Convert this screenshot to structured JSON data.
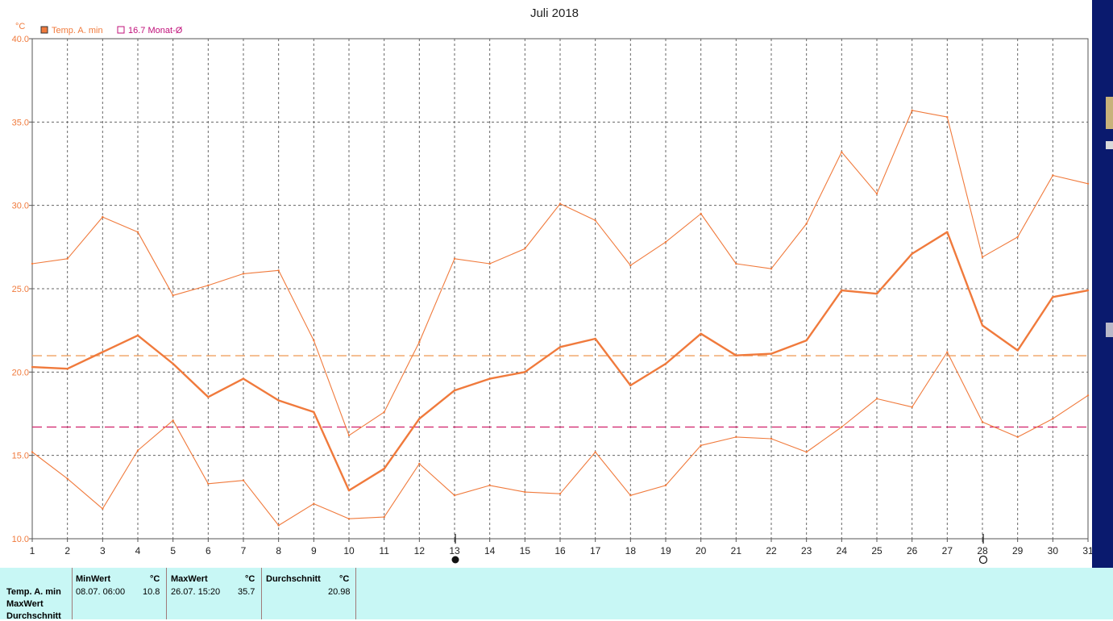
{
  "chart_data": {
    "type": "line",
    "title": "Juli 2018",
    "ylabel": "°C",
    "ylim": [
      10,
      40
    ],
    "yticks": [
      "10.0",
      "15.0",
      "20.0",
      "25.0",
      "30.0",
      "35.0",
      "40.0"
    ],
    "x": [
      1,
      2,
      3,
      4,
      5,
      6,
      7,
      8,
      9,
      10,
      11,
      12,
      13,
      14,
      15,
      16,
      17,
      18,
      19,
      20,
      21,
      22,
      23,
      24,
      25,
      26,
      27,
      28,
      29,
      30,
      31
    ],
    "xlim": [
      1,
      31
    ],
    "grid": true,
    "legend_position": "top-left",
    "series": [
      {
        "name": "Temp. A. min",
        "role": "mean",
        "color": "#f07a3c",
        "values": [
          20.3,
          20.2,
          21.2,
          22.2,
          20.5,
          18.5,
          19.6,
          18.3,
          17.6,
          12.9,
          14.2,
          17.2,
          18.9,
          19.6,
          20.0,
          21.5,
          22.0,
          19.2,
          20.5,
          22.3,
          21.0,
          21.1,
          21.9,
          24.9,
          24.7,
          27.1,
          28.4,
          22.8,
          21.3,
          24.5,
          24.9
        ]
      },
      {
        "role": "max",
        "color": "#f07a3c",
        "values": [
          26.5,
          26.8,
          29.3,
          28.4,
          24.6,
          25.2,
          25.9,
          26.1,
          21.9,
          16.2,
          17.6,
          21.8,
          26.8,
          26.5,
          27.4,
          30.1,
          29.1,
          26.4,
          27.8,
          29.5,
          26.5,
          26.2,
          28.9,
          33.2,
          30.7,
          35.7,
          35.3,
          26.9,
          28.1,
          31.8,
          31.3
        ]
      },
      {
        "role": "min",
        "color": "#f07a3c",
        "values": [
          15.2,
          13.6,
          11.8,
          15.3,
          17.1,
          13.3,
          13.5,
          10.8,
          12.1,
          11.2,
          11.3,
          14.5,
          12.6,
          13.2,
          12.8,
          12.7,
          15.2,
          12.6,
          13.2,
          15.6,
          16.1,
          16.0,
          15.2,
          16.7,
          18.4,
          17.9,
          21.2,
          17.0,
          16.1,
          17.2,
          18.6
        ]
      }
    ],
    "reference_lines": [
      {
        "value": 20.98,
        "color": "#f0a060"
      },
      {
        "name": "16.7 Monat-Ø",
        "value": 16.7,
        "color": "#d0206a"
      }
    ],
    "markers": [
      {
        "day": 13,
        "symbol": "new-moon"
      },
      {
        "day": 28,
        "symbol": "full-moon"
      }
    ]
  },
  "legend": {
    "series_label": "Temp. A. min",
    "avg_label": "16.7 Monat-Ø",
    "series_color": "#f07a3c",
    "avg_color": "#c0107a"
  },
  "stats_panel": {
    "row_labels": [
      "Temp. A. min",
      "MaxWert",
      "Durchschnitt"
    ],
    "min_header": "MinWert",
    "max_header": "MaxWert",
    "avg_header": "Durchschnitt",
    "unit": "°C",
    "min_date": "08.07.  06:00",
    "min_value": "10.8",
    "max_date": "26.07.  15:20",
    "max_value": "35.7",
    "avg_value": "20.98"
  }
}
